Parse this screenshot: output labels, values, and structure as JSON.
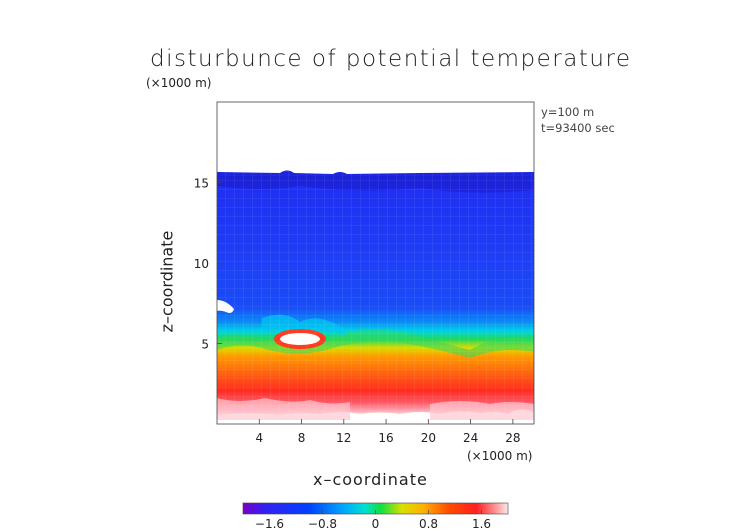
{
  "chart_data": {
    "type": "heatmap",
    "title": "disturbunce of potential temperature",
    "unit_label_top": "(×1000 m)",
    "info": [
      "y=100 m",
      "t=93400 sec"
    ],
    "xlabel": "x–coordinate",
    "ylabel": "z–coordinate",
    "x_unit_label": "(×1000 m)",
    "xlim": [
      0,
      30
    ],
    "ylim": [
      0,
      20
    ],
    "x_ticks": [
      "4",
      "8",
      "12",
      "16",
      "20",
      "24",
      "28"
    ],
    "y_ticks": [
      "5",
      "10",
      "15"
    ],
    "colorbar": {
      "ticks": [
        "−1.6",
        "−0.8",
        "0",
        "0.8",
        "1.6"
      ],
      "range": [
        -2.0,
        2.0
      ],
      "colors": [
        "#9a00e0",
        "#2b20f5",
        "#0030ff",
        "#0070ff",
        "#00b4ff",
        "#00e3d9",
        "#00e060",
        "#7ad800",
        "#e8e000",
        "#ffb300",
        "#ff6a00",
        "#ff2200",
        "#ff5555",
        "#ffb0b0",
        "#ffe0e0"
      ]
    },
    "field_summary": {
      "top_of_field_z": 15.8,
      "stable_layer_z": [
        6.0,
        7.5
      ],
      "surface_max_value": 2.0,
      "upper_min_value": -1.5
    }
  }
}
